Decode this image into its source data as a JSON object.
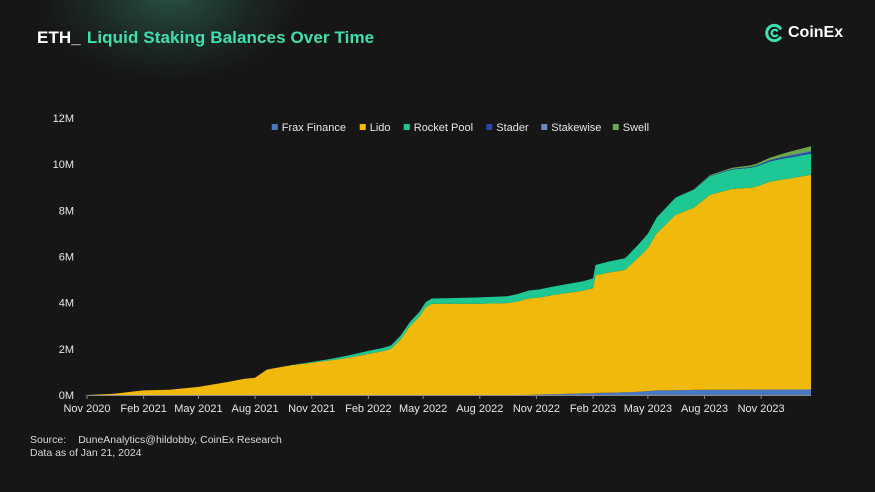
{
  "header": {
    "title_prefix": "ETH_",
    "title_main": "Liquid Staking Balances Over Time",
    "logo_text": "CoinEx"
  },
  "footer": {
    "source_label": "Source:",
    "source_text": "DuneAnalytics@hildobby, CoinEx Research",
    "date_note": "Data as of Jan 21, 2024"
  },
  "colors": {
    "background": "#161616",
    "title_accent": "#3fe0b0",
    "Frax Finance": "#4a78c0",
    "Lido": "#f0b90b",
    "Rocket Pool": "#1ec894",
    "Stader": "#2746a8",
    "Stakewise": "#6f86b9",
    "Swell": "#6aa84f"
  },
  "chart_data": {
    "type": "area",
    "stacked": true,
    "legend": [
      "Frax Finance",
      "Lido",
      "Rocket Pool",
      "Stader",
      "Stakewise",
      "Swell"
    ],
    "legend_placement": "top-center",
    "xlabel": "",
    "ylabel": "",
    "ylim": [
      0,
      12000000
    ],
    "yticks": [
      {
        "v": 0,
        "label": "0M"
      },
      {
        "v": 2000000,
        "label": "2M"
      },
      {
        "v": 4000000,
        "label": "4M"
      },
      {
        "v": 6000000,
        "label": "6M"
      },
      {
        "v": 8000000,
        "label": "8M"
      },
      {
        "v": 10000000,
        "label": "10M"
      },
      {
        "v": 12000000,
        "label": "12M"
      }
    ],
    "xlim": [
      "2020-11-01",
      "2024-01-21"
    ],
    "xticks": [
      {
        "date": "2020-11-01",
        "label": "Nov 2020"
      },
      {
        "date": "2021-02-01",
        "label": "Feb 2021"
      },
      {
        "date": "2021-05-01",
        "label": "May 2021"
      },
      {
        "date": "2021-08-01",
        "label": "Aug 2021"
      },
      {
        "date": "2021-11-01",
        "label": "Nov 2021"
      },
      {
        "date": "2022-02-01",
        "label": "Feb 2022"
      },
      {
        "date": "2022-05-01",
        "label": "May 2022"
      },
      {
        "date": "2022-08-01",
        "label": "Aug 2022"
      },
      {
        "date": "2022-11-01",
        "label": "Nov 2022"
      },
      {
        "date": "2023-02-01",
        "label": "Feb 2023"
      },
      {
        "date": "2023-05-01",
        "label": "May 2023"
      },
      {
        "date": "2023-08-01",
        "label": "Aug 2023"
      },
      {
        "date": "2023-11-01",
        "label": "Nov 2023"
      }
    ],
    "grid": false,
    "x": [
      "2020-11-01",
      "2020-12-15",
      "2021-01-15",
      "2021-02-01",
      "2021-03-15",
      "2021-05-01",
      "2021-06-15",
      "2021-07-15",
      "2021-08-01",
      "2021-08-20",
      "2021-09-10",
      "2021-10-01",
      "2021-11-01",
      "2021-12-01",
      "2022-01-01",
      "2022-02-01",
      "2022-02-25",
      "2022-03-10",
      "2022-03-25",
      "2022-04-10",
      "2022-04-25",
      "2022-05-05",
      "2022-05-15",
      "2022-06-15",
      "2022-08-01",
      "2022-09-15",
      "2022-10-01",
      "2022-10-20",
      "2022-11-05",
      "2022-12-01",
      "2023-01-15",
      "2023-02-01",
      "2023-02-05",
      "2023-02-25",
      "2023-03-25",
      "2023-04-15",
      "2023-05-01",
      "2023-05-15",
      "2023-06-15",
      "2023-07-15",
      "2023-08-10",
      "2023-09-15",
      "2023-10-15",
      "2023-10-25",
      "2023-11-15",
      "2023-12-05",
      "2023-12-20",
      "2024-01-21"
    ],
    "series": [
      {
        "name": "Frax Finance",
        "values": [
          0,
          0,
          0,
          0,
          0,
          0,
          0,
          0,
          0,
          0,
          0,
          0,
          0,
          0,
          0,
          0,
          0,
          0,
          0,
          0,
          0,
          0,
          0,
          0,
          0,
          0,
          0,
          5000,
          20000,
          40000,
          70000,
          80000,
          90000,
          100000,
          120000,
          140000,
          170000,
          200000,
          210000,
          220000,
          225000,
          230000,
          232000,
          233000,
          235000,
          236000,
          237000,
          238000
        ]
      },
      {
        "name": "Lido",
        "values": [
          0,
          50000,
          150000,
          200000,
          230000,
          350000,
          550000,
          700000,
          750000,
          1100000,
          1200000,
          1300000,
          1400000,
          1500000,
          1620000,
          1780000,
          1900000,
          2000000,
          2400000,
          3000000,
          3400000,
          3800000,
          3950000,
          3950000,
          3950000,
          3980000,
          4050000,
          4180000,
          4200000,
          4300000,
          4450000,
          4550000,
          5100000,
          5200000,
          5300000,
          5800000,
          6200000,
          6800000,
          7600000,
          7900000,
          8450000,
          8700000,
          8750000,
          8800000,
          9000000,
          9100000,
          9150000,
          9300000
        ]
      },
      {
        "name": "Rocket Pool",
        "values": [
          0,
          0,
          0,
          0,
          0,
          0,
          0,
          0,
          0,
          0,
          0,
          5000,
          30000,
          60000,
          100000,
          130000,
          140000,
          150000,
          165000,
          180000,
          200000,
          220000,
          230000,
          250000,
          280000,
          300000,
          320000,
          340000,
          350000,
          370000,
          400000,
          420000,
          440000,
          470000,
          500000,
          560000,
          620000,
          680000,
          740000,
          780000,
          810000,
          840000,
          860000,
          870000,
          880000,
          900000,
          910000,
          920000
        ]
      },
      {
        "name": "Stader",
        "values": [
          0,
          0,
          0,
          0,
          0,
          0,
          0,
          0,
          0,
          0,
          0,
          0,
          0,
          0,
          0,
          0,
          0,
          0,
          0,
          0,
          0,
          0,
          0,
          0,
          0,
          0,
          0,
          0,
          0,
          0,
          0,
          0,
          0,
          0,
          0,
          0,
          0,
          0,
          0,
          5000,
          15000,
          25000,
          35000,
          40000,
          50000,
          60000,
          70000,
          80000
        ]
      },
      {
        "name": "Stakewise",
        "values": [
          0,
          0,
          0,
          0,
          0,
          0,
          0,
          0,
          0,
          0,
          0,
          0,
          0,
          0,
          0,
          0,
          0,
          0,
          0,
          0,
          0,
          0,
          0,
          0,
          0,
          0,
          0,
          0,
          0,
          0,
          0,
          0,
          0,
          0,
          0,
          0,
          0,
          0,
          0,
          0,
          0,
          0,
          0,
          0,
          10000,
          20000,
          30000,
          40000
        ]
      },
      {
        "name": "Swell",
        "values": [
          0,
          0,
          0,
          0,
          0,
          0,
          0,
          0,
          0,
          0,
          0,
          0,
          0,
          0,
          0,
          0,
          0,
          0,
          0,
          0,
          0,
          0,
          0,
          0,
          0,
          0,
          0,
          0,
          0,
          0,
          0,
          0,
          0,
          0,
          0,
          0,
          0,
          0,
          5000,
          15000,
          30000,
          50000,
          70000,
          80000,
          100000,
          130000,
          160000,
          200000
        ]
      }
    ]
  }
}
